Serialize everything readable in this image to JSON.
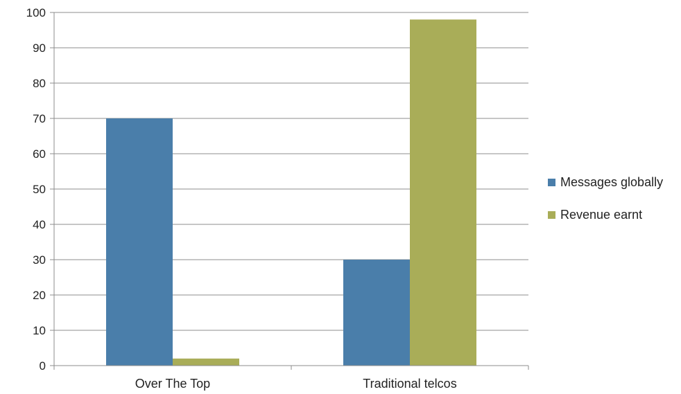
{
  "chart_data": {
    "type": "bar",
    "title": "",
    "xlabel": "",
    "ylabel": "",
    "categories": [
      "Over The Top",
      "Traditional telcos"
    ],
    "series": [
      {
        "name": "Messages globally",
        "values": [
          70,
          30
        ],
        "color": "#4a7eaa"
      },
      {
        "name": "Revenue earnt",
        "values": [
          2,
          98
        ],
        "color": "#a9ad58"
      }
    ],
    "ylim": [
      0,
      100
    ],
    "yticks": [
      0,
      10,
      20,
      30,
      40,
      50,
      60,
      70,
      80,
      90,
      100
    ],
    "grid": true,
    "legend_position": "right"
  }
}
